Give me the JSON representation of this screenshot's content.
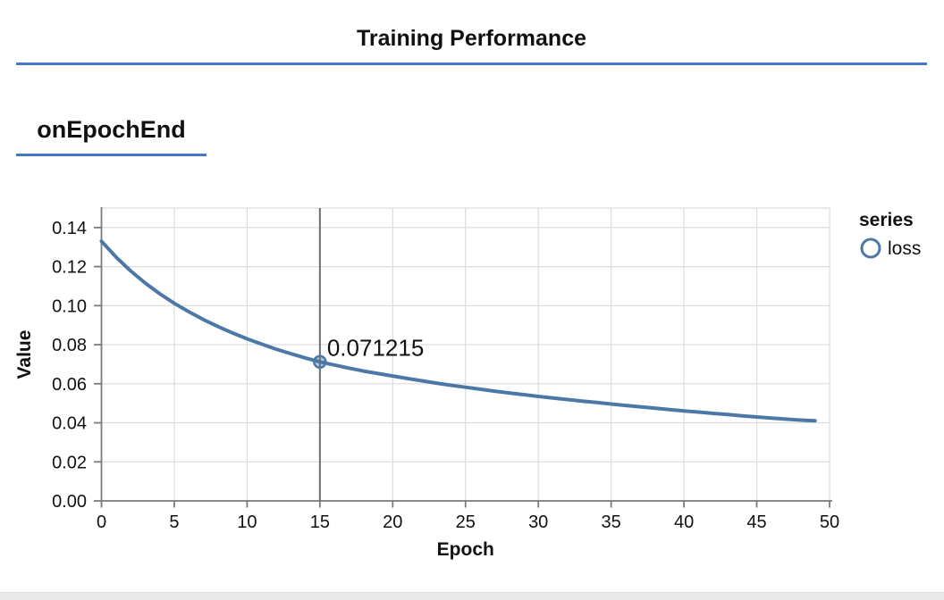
{
  "header": {
    "title": "Training Performance"
  },
  "section": {
    "label": "onEpochEnd"
  },
  "theme": {
    "accent": "#4678c8",
    "page_background": "#ffffff",
    "bottom_strip": "#e9e9e9"
  },
  "chart_data": {
    "type": "line",
    "title": "",
    "xlabel": "Epoch",
    "ylabel": "Value",
    "xlim": [
      0,
      50
    ],
    "ylim": [
      0,
      0.15
    ],
    "x_ticks": [
      0,
      5,
      10,
      15,
      20,
      25,
      30,
      35,
      40,
      45,
      50
    ],
    "y_ticks": [
      0,
      0.02,
      0.04,
      0.06,
      0.08,
      0.1,
      0.12,
      0.14
    ],
    "grid": true,
    "grid_color": "#dcdcdc",
    "axis_color": "#7b7b7b",
    "line_color": "#4c78a8",
    "legend": {
      "title": "series",
      "position": "right",
      "entries": [
        {
          "label": "loss",
          "symbol": "circle-outline",
          "color": "#4c78a8"
        }
      ]
    },
    "series": [
      {
        "name": "loss",
        "x": [
          0,
          1,
          2,
          3,
          4,
          5,
          6,
          7,
          8,
          9,
          10,
          11,
          12,
          13,
          14,
          15,
          16,
          17,
          18,
          19,
          20,
          21,
          22,
          23,
          24,
          25,
          26,
          27,
          28,
          29,
          30,
          31,
          32,
          33,
          34,
          35,
          36,
          37,
          38,
          39,
          40,
          41,
          42,
          43,
          44,
          45,
          46,
          47,
          48,
          49
        ],
        "y": [
          0.133,
          0.1249,
          0.1178,
          0.1116,
          0.1061,
          0.1012,
          0.0969,
          0.0929,
          0.0893,
          0.086,
          0.083,
          0.0803,
          0.0777,
          0.0754,
          0.0732,
          0.071215,
          0.0696,
          0.068,
          0.0665,
          0.0652,
          0.064,
          0.0627,
          0.0615,
          0.0603,
          0.0592,
          0.0582,
          0.0572,
          0.0562,
          0.0553,
          0.0544,
          0.0535,
          0.0527,
          0.0519,
          0.0511,
          0.0504,
          0.0496,
          0.0489,
          0.0482,
          0.0475,
          0.0468,
          0.0461,
          0.0455,
          0.0448,
          0.0442,
          0.0436,
          0.043,
          0.0424,
          0.0419,
          0.0414,
          0.041
        ]
      }
    ],
    "highlight": {
      "x": 15,
      "y": 0.071215,
      "label": "0.071215",
      "rule_color": "#6e6e6e"
    }
  }
}
